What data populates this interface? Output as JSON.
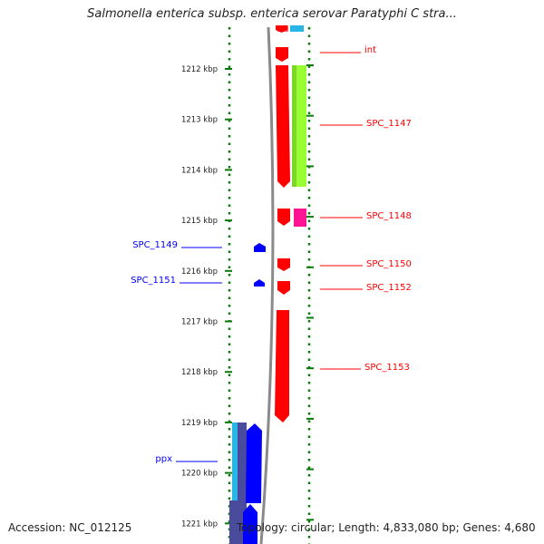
{
  "title": "Salmonella enterica subsp. enterica serovar Paratyphi C stra...",
  "footer": {
    "accession": "Accession: NC_012125",
    "topology": "Topology: circular; Length: 4,833,080 bp; Genes: 4,680"
  },
  "colors": {
    "forward_cds": "#ff0000",
    "reverse_cds": "#0000ff",
    "tick": "#0a7a0a",
    "backbone": "#8a8a8a",
    "track_green": "#99ff33",
    "track_magenta": "#ff1493",
    "track_cyan": "#27b6e6",
    "track_navy": "#4b4b9e"
  },
  "axis": {
    "unit": "kbp",
    "ticks": [
      1212,
      1213,
      1214,
      1215,
      1216,
      1217,
      1218,
      1219,
      1220,
      1221
    ]
  },
  "genes": [
    {
      "label": "int",
      "strand": "+"
    },
    {
      "label": "SPC_1147",
      "strand": "+"
    },
    {
      "label": "SPC_1148",
      "strand": "+"
    },
    {
      "label": "SPC_1149",
      "strand": "-"
    },
    {
      "label": "SPC_1150",
      "strand": "+"
    },
    {
      "label": "SPC_1151",
      "strand": "-"
    },
    {
      "label": "SPC_1152",
      "strand": "+"
    },
    {
      "label": "SPC_1153",
      "strand": "+"
    },
    {
      "label": "ppx",
      "strand": "-"
    }
  ]
}
